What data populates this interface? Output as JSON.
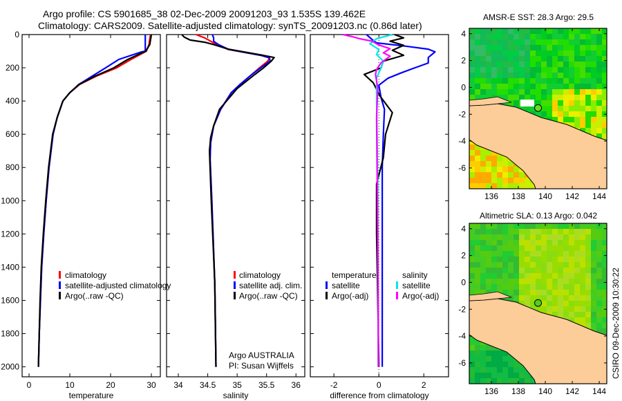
{
  "title": {
    "line1": "Argo profile: CS 5901685_38 02-Dec-2009 20091203_93 1.535S 139.462E",
    "line2": "Climatology: CARS2009. Satellite-adjusted climatology: synTS_20091203.nc (0.86d later)"
  },
  "credit": {
    "line1": "Argo AUSTRALIA",
    "line2": "PI: Susan Wijffels"
  },
  "timestamp": "CSIRO 09-Dec-2009 10:30:22",
  "colors": {
    "climatology": "#ff0000",
    "satellite": "#0000ff",
    "argo": "#000000",
    "sal_satellite": "#00e5ee",
    "sal_argo": "#ff00ff",
    "land": "#fccc99"
  },
  "chart_data": [
    {
      "type": "line",
      "xlabel": "temperature",
      "xlim": [
        -1.7,
        32.2
      ],
      "ylim": [
        0,
        2060
      ],
      "yreverse": true,
      "xticks": [
        0,
        10,
        20,
        30
      ],
      "yticks": [
        0,
        200,
        400,
        600,
        800,
        1000,
        1200,
        1400,
        1600,
        1800,
        2000
      ],
      "legend": [
        "climatology",
        "satellite-adjusted climatology",
        "Argo(..raw -QC)"
      ],
      "series": [
        {
          "name": "climatology",
          "color": "#ff0000",
          "depth": [
            0,
            60,
            100,
            150,
            200,
            250,
            300,
            350,
            400,
            500,
            600,
            800,
            1000,
            1200,
            1400,
            1600,
            1800,
            2000
          ],
          "values": [
            29.8,
            29.4,
            28.8,
            25.0,
            21.5,
            16.5,
            12.4,
            10.0,
            8.3,
            6.9,
            5.9,
            4.9,
            4.2,
            3.6,
            3.1,
            2.8,
            2.5,
            2.3
          ]
        },
        {
          "name": "satellite-adjusted climatology",
          "color": "#0000ff",
          "depth": [
            0,
            100,
            105,
            150,
            200,
            250,
            300,
            350,
            400,
            500,
            600,
            800,
            1000,
            1200,
            1400,
            1600,
            1800,
            2000
          ],
          "values": [
            28.5,
            28.5,
            27.5,
            22.0,
            18.8,
            15.5,
            12.2,
            10.0,
            8.3,
            6.9,
            5.9,
            4.9,
            4.2,
            3.6,
            3.1,
            2.8,
            2.5,
            2.3
          ]
        },
        {
          "name": "Argo(..raw -QC)",
          "color": "#000000",
          "depth": [
            0,
            60,
            100,
            150,
            200,
            250,
            300,
            350,
            400,
            500,
            600,
            800,
            1000,
            1200,
            1400,
            1600,
            1800,
            2000
          ],
          "values": [
            30.0,
            29.6,
            28.6,
            24.2,
            20.8,
            16.2,
            12.3,
            10.0,
            8.3,
            6.9,
            5.8,
            4.8,
            4.1,
            3.5,
            3.0,
            2.7,
            2.5,
            2.3
          ]
        }
      ]
    },
    {
      "type": "line",
      "xlabel": "salinity",
      "xlim": [
        33.8,
        36.15
      ],
      "ylim": [
        0,
        2060
      ],
      "yreverse": true,
      "xticks": [
        34,
        34.5,
        35,
        35.5,
        36
      ],
      "legend": [
        "climatology",
        "satellite adj. clim.",
        "Argo(..raw -QC)"
      ],
      "series": [
        {
          "name": "climatology",
          "color": "#ff0000",
          "depth": [
            0,
            20,
            40,
            60,
            90,
            125,
            140,
            160,
            200,
            240,
            300,
            350,
            450,
            550,
            650,
            750,
            1000,
            1500,
            2000
          ],
          "values": [
            34.3,
            34.45,
            34.55,
            34.65,
            34.85,
            35.4,
            35.55,
            35.52,
            35.38,
            35.25,
            35.05,
            34.9,
            34.72,
            34.6,
            34.55,
            34.54,
            34.57,
            34.62,
            34.64
          ]
        },
        {
          "name": "satellite adj. clim.",
          "color": "#0000ff",
          "depth": [
            0,
            20,
            40,
            60,
            90,
            125,
            140,
            160,
            200,
            240,
            300,
            350,
            450,
            550,
            650,
            750,
            1000,
            1500,
            2000
          ],
          "values": [
            34.58,
            34.6,
            34.6,
            34.68,
            34.86,
            35.4,
            35.55,
            35.56,
            35.4,
            35.25,
            35.05,
            34.9,
            34.72,
            34.6,
            34.55,
            34.54,
            34.57,
            34.62,
            34.64
          ]
        },
        {
          "name": "Argo(..raw -QC)",
          "color": "#000000",
          "depth": [
            0,
            15,
            33,
            46,
            60,
            88,
            125,
            138,
            160,
            200,
            240,
            325,
            450,
            550,
            620,
            700,
            1000,
            1500,
            2000
          ],
          "values": [
            34.06,
            34.1,
            34.2,
            34.45,
            34.6,
            34.85,
            35.44,
            35.63,
            35.58,
            35.45,
            35.3,
            35.0,
            34.7,
            34.6,
            34.55,
            34.53,
            34.56,
            34.62,
            34.64
          ]
        }
      ]
    },
    {
      "type": "line",
      "xlabel": "difference from climatology",
      "xlim": [
        -3.05,
        3.1
      ],
      "ylim": [
        0,
        2060
      ],
      "yreverse": true,
      "xticks": [
        -2,
        0,
        2
      ],
      "legend_groups": [
        {
          "heading": "temperature",
          "items": [
            "satellite",
            "Argo(-adj)"
          ]
        },
        {
          "heading": "salinity",
          "items": [
            "satellite",
            "Argo(-adj)"
          ]
        }
      ],
      "series": [
        {
          "name": "temperature satellite",
          "color": "#0000ff",
          "depth": [
            0,
            30,
            50,
            70,
            88,
            104,
            138,
            171,
            200,
            230,
            263,
            305,
            380,
            450,
            600,
            800,
            1200,
            1600,
            2000
          ],
          "values": [
            -0.55,
            -0.3,
            -0.1,
            1.2,
            2.2,
            2.5,
            2.2,
            2.2,
            1.6,
            1.0,
            0.4,
            0.0,
            0.1,
            0.25,
            0.2,
            0.15,
            0.15,
            0.15,
            0.15
          ]
        },
        {
          "name": "temperature Argo(-adj)",
          "color": "#000000",
          "depth": [
            0,
            20,
            40,
            65,
            95,
            125,
            160,
            200,
            240,
            290,
            370,
            470,
            600,
            740,
            900,
            1200,
            1600,
            2000
          ],
          "values": [
            0.7,
            1.1,
            0.5,
            1.1,
            0.6,
            1.1,
            0.2,
            0.1,
            -0.65,
            -0.25,
            0.05,
            0.6,
            0.3,
            0.2,
            -0.1,
            -0.1,
            -0.05,
            0.0
          ]
        },
        {
          "name": "salinity satellite",
          "color": "#00e5ee",
          "depth": [
            0,
            25,
            55,
            90,
            120,
            160,
            200,
            260,
            400,
            600,
            900,
            1300,
            1700,
            2000
          ],
          "values": [
            0.6,
            -0.1,
            -0.4,
            0.0,
            -0.1,
            0.2,
            0.1,
            -0.1,
            -0.1,
            -0.08,
            -0.05,
            -0.05,
            -0.03,
            -0.03
          ]
        },
        {
          "name": "salinity Argo(-adj)",
          "color": "#ff00ff",
          "depth": [
            0,
            12,
            25,
            40,
            60,
            85,
            110,
            130,
            170,
            210,
            240,
            320,
            500,
            800,
            1200,
            1600,
            2000
          ],
          "values": [
            -1.6,
            -1.2,
            -0.85,
            -0.3,
            -0.05,
            0.5,
            0.2,
            0.5,
            0.1,
            -0.1,
            -0.15,
            -0.05,
            -0.1,
            -0.08,
            -0.05,
            -0.03,
            -0.02
          ]
        }
      ]
    }
  ],
  "maps": [
    {
      "title": "AMSR-E SST: 28.3 Argo: 29.5",
      "lon_ticks": [
        136,
        138,
        140,
        142,
        144
      ],
      "lat_ticks": [
        4,
        2,
        0,
        -2,
        -4,
        -6
      ],
      "argo_lon": 139.462,
      "argo_lat": -1.535
    },
    {
      "title": "Altimetric SLA: 0.13 Argo: 0.042",
      "lon_ticks": [
        136,
        138,
        140,
        142,
        144
      ],
      "lat_ticks": [
        4,
        2,
        0,
        -2,
        -4,
        -6
      ],
      "argo_lon": 139.462,
      "argo_lat": -1.535
    }
  ]
}
